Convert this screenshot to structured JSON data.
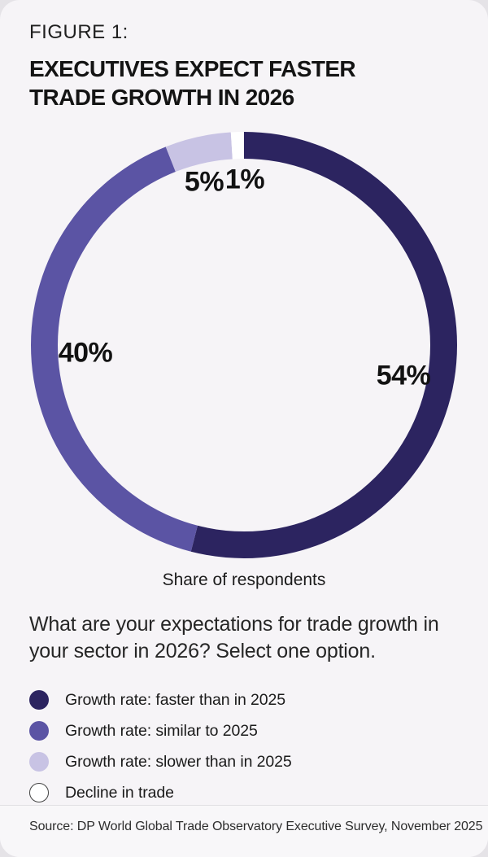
{
  "figure_label": "FIGURE 1:",
  "title_line1": "EXECUTIVES EXPECT FASTER",
  "title_line2": "TRADE GROWTH IN 2026",
  "chart_data": {
    "type": "pie",
    "subtype": "donut",
    "caption": "Share of respondents",
    "question": "What are your expectations for trade growth in your sector in 2026? Select one option.",
    "start_angle": "top",
    "direction": "clockwise",
    "unit": "%",
    "legend_position": "bottom-left",
    "slices": [
      {
        "label": "Growth rate: faster than in 2025",
        "value": 54,
        "display": "54%",
        "color": "#2C2460"
      },
      {
        "label": "Growth rate: similar to 2025",
        "value": 40,
        "display": "40%",
        "color": "#5B54A4"
      },
      {
        "label": "Growth rate: slower than in 2025",
        "value": 5,
        "display": "5%",
        "color": "#C8C3E4"
      },
      {
        "label": "Decline in trade",
        "value": 1,
        "display": "1%",
        "color": "#FFFFFF"
      }
    ]
  },
  "source": "Source: DP World Global Trade Observatory Executive Survey, November 2025",
  "colors": {
    "card_background": "#F6F4F7",
    "page_background": "#E5E3E7",
    "text": "#141414"
  }
}
